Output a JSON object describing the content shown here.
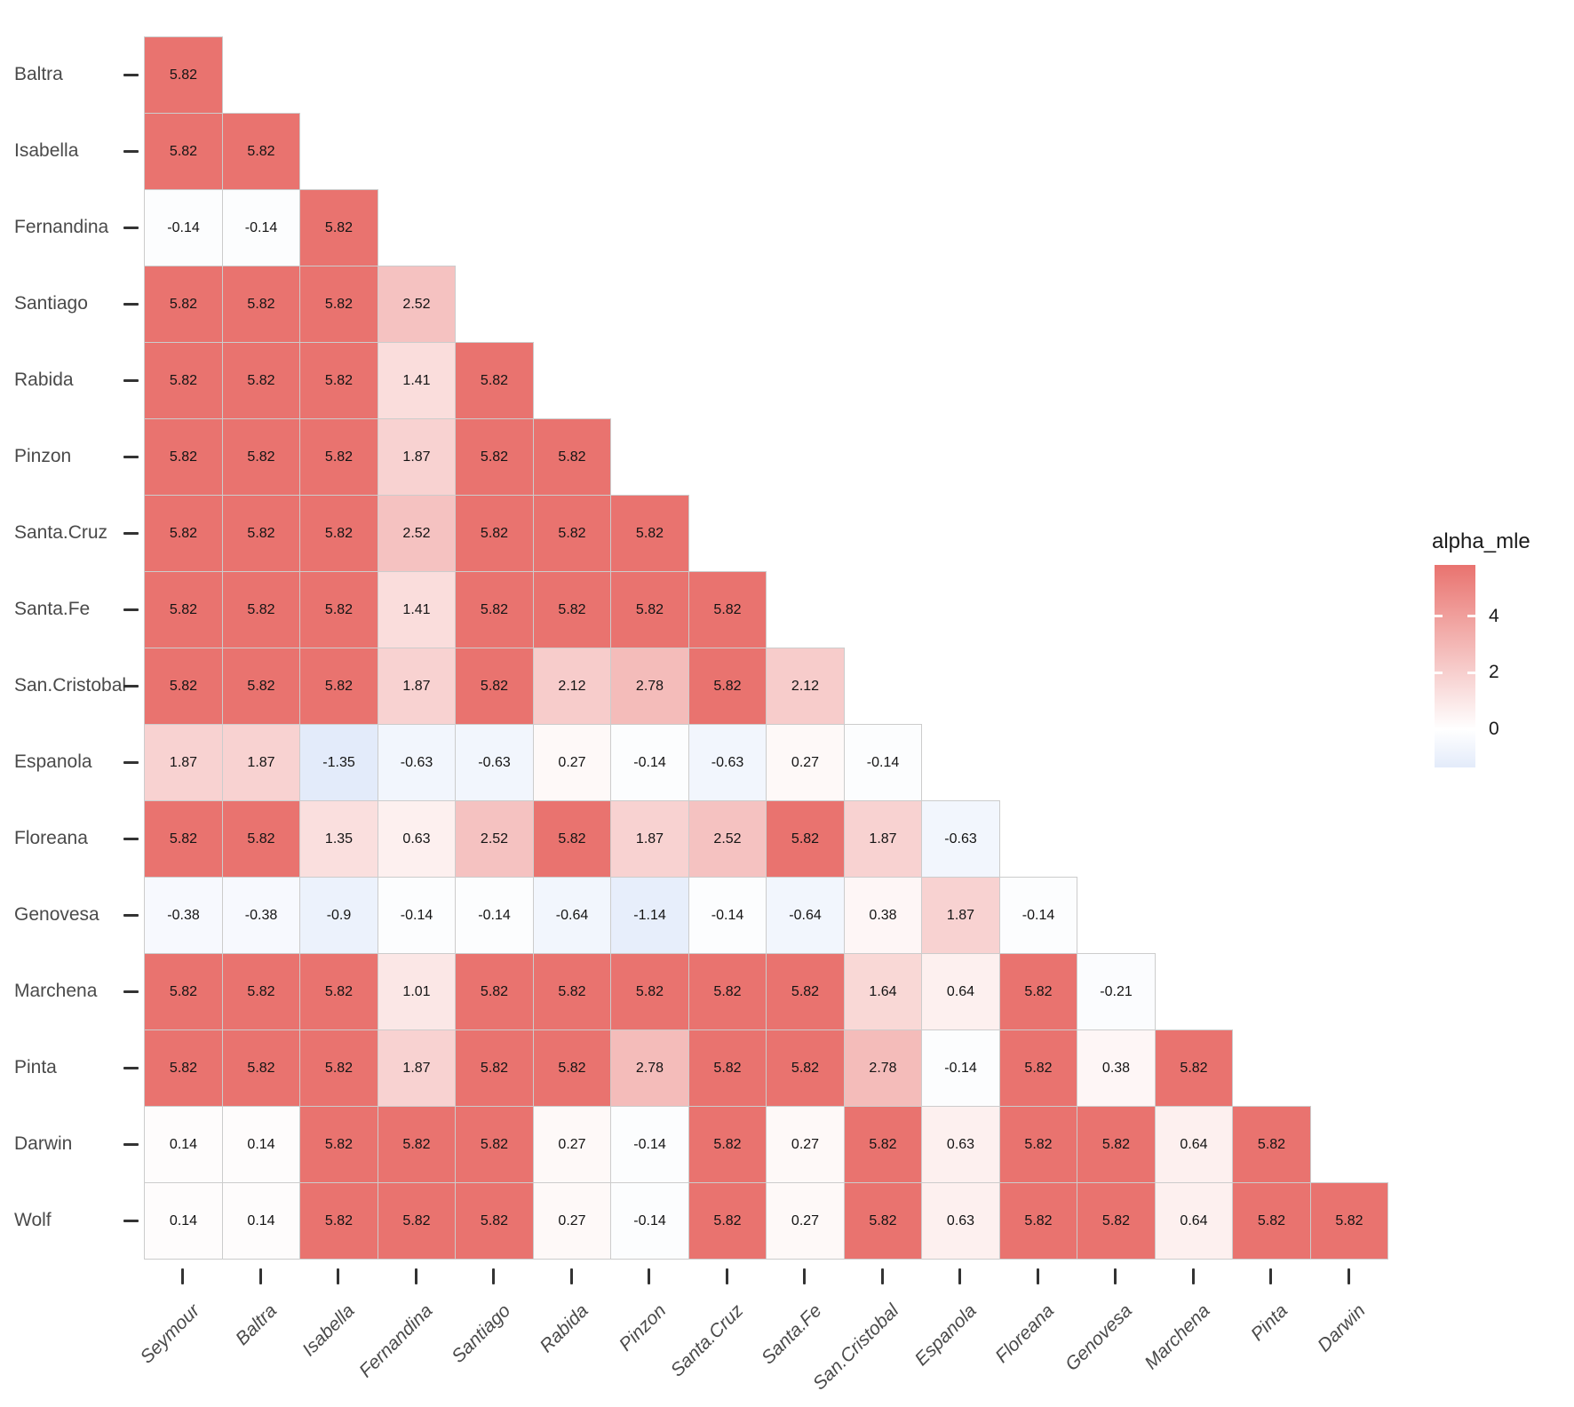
{
  "chart_data": {
    "type": "heatmap",
    "shape": "lower-triangular pairwise matrix",
    "legend": {
      "title": "alpha_mle",
      "ticks": [
        4,
        2,
        0
      ],
      "position": "right"
    },
    "colors": {
      "high": "#E9736F",
      "mid": "#FFFFFF",
      "low": "#E3EBFA",
      "domain_min": -1.35,
      "domain_max": 5.82,
      "cell_border": "#CCCCCC",
      "axis_text": "#4A4A4A",
      "tick_mark": "#333333",
      "cell_text": "#141414"
    },
    "x_categories": [
      "Seymour",
      "Baltra",
      "Isabella",
      "Fernandina",
      "Santiago",
      "Rabida",
      "Pinzon",
      "Santa.Cruz",
      "Santa.Fe",
      "San.Cristobal",
      "Espanola",
      "Floreana",
      "Genovesa",
      "Marchena",
      "Pinta",
      "Darwin"
    ],
    "y_categories": [
      "Baltra",
      "Isabella",
      "Fernandina",
      "Santiago",
      "Rabida",
      "Pinzon",
      "Santa.Cruz",
      "Santa.Fe",
      "San.Cristobal",
      "Espanola",
      "Floreana",
      "Genovesa",
      "Marchena",
      "Pinta",
      "Darwin",
      "Wolf"
    ],
    "rows": [
      {
        "label": "Baltra",
        "values": [
          5.82
        ]
      },
      {
        "label": "Isabella",
        "values": [
          5.82,
          5.82
        ]
      },
      {
        "label": "Fernandina",
        "values": [
          -0.14,
          -0.14,
          5.82
        ]
      },
      {
        "label": "Santiago",
        "values": [
          5.82,
          5.82,
          5.82,
          2.52
        ]
      },
      {
        "label": "Rabida",
        "values": [
          5.82,
          5.82,
          5.82,
          1.41,
          5.82
        ]
      },
      {
        "label": "Pinzon",
        "values": [
          5.82,
          5.82,
          5.82,
          1.87,
          5.82,
          5.82
        ]
      },
      {
        "label": "Santa.Cruz",
        "values": [
          5.82,
          5.82,
          5.82,
          2.52,
          5.82,
          5.82,
          5.82
        ]
      },
      {
        "label": "Santa.Fe",
        "values": [
          5.82,
          5.82,
          5.82,
          1.41,
          5.82,
          5.82,
          5.82,
          5.82
        ]
      },
      {
        "label": "San.Cristobal",
        "values": [
          5.82,
          5.82,
          5.82,
          1.87,
          5.82,
          2.12,
          2.78,
          5.82,
          2.12
        ]
      },
      {
        "label": "Espanola",
        "values": [
          1.87,
          1.87,
          -1.35,
          -0.63,
          -0.63,
          0.27,
          -0.14,
          -0.63,
          0.27,
          -0.14
        ]
      },
      {
        "label": "Floreana",
        "values": [
          5.82,
          5.82,
          1.35,
          0.63,
          2.52,
          5.82,
          1.87,
          2.52,
          5.82,
          1.87,
          -0.63
        ]
      },
      {
        "label": "Genovesa",
        "values": [
          -0.38,
          -0.38,
          -0.9,
          -0.14,
          -0.14,
          -0.64,
          -1.14,
          -0.14,
          -0.64,
          0.38,
          1.87,
          -0.14
        ]
      },
      {
        "label": "Marchena",
        "values": [
          5.82,
          5.82,
          5.82,
          1.01,
          5.82,
          5.82,
          5.82,
          5.82,
          5.82,
          1.64,
          0.64,
          5.82,
          -0.21
        ]
      },
      {
        "label": "Pinta",
        "values": [
          5.82,
          5.82,
          5.82,
          1.87,
          5.82,
          5.82,
          2.78,
          5.82,
          5.82,
          2.78,
          -0.14,
          5.82,
          0.38,
          5.82
        ]
      },
      {
        "label": "Darwin",
        "values": [
          0.14,
          0.14,
          5.82,
          5.82,
          5.82,
          0.27,
          -0.14,
          5.82,
          0.27,
          5.82,
          0.63,
          5.82,
          5.82,
          0.64,
          5.82
        ]
      },
      {
        "label": "Wolf",
        "values": [
          0.14,
          0.14,
          5.82,
          5.82,
          5.82,
          0.27,
          -0.14,
          5.82,
          0.27,
          5.82,
          0.63,
          5.82,
          5.82,
          0.64,
          5.82,
          5.82
        ]
      }
    ]
  }
}
